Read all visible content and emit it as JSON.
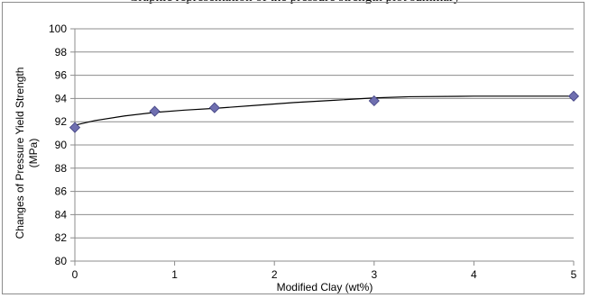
{
  "top_text_fragment": "Graphic representation of the pressure strength plot summary",
  "chart_data": {
    "type": "scatter",
    "title": "",
    "xlabel": "Modified Clay (wt%)",
    "ylabel_lines": [
      "Changes of Pressure Yield Strength",
      "(MPa)"
    ],
    "xlim": [
      0,
      5
    ],
    "ylim": [
      80,
      100
    ],
    "x_ticks": [
      0,
      1,
      2,
      3,
      4,
      5
    ],
    "y_ticks": [
      80,
      82,
      84,
      86,
      88,
      90,
      92,
      94,
      96,
      98,
      100
    ],
    "grid": "horizontal",
    "legend": "none",
    "marker": "diamond",
    "marker_color": "#6f6fb0",
    "trendline": "logarithmic",
    "series": [
      {
        "x": [
          0,
          0.8,
          1.4,
          3,
          5
        ],
        "y": [
          91.5,
          92.9,
          93.2,
          93.8,
          94.2
        ]
      }
    ],
    "trend_points": [
      [
        0,
        91.7
      ],
      [
        0.2,
        92.1
      ],
      [
        0.5,
        92.5
      ],
      [
        0.8,
        92.8
      ],
      [
        1.1,
        93.0
      ],
      [
        1.4,
        93.15
      ],
      [
        1.8,
        93.4
      ],
      [
        2.2,
        93.65
      ],
      [
        2.6,
        93.85
      ],
      [
        3.0,
        94.05
      ],
      [
        3.35,
        94.15
      ],
      [
        4.0,
        94.2
      ],
      [
        5.0,
        94.2
      ]
    ]
  }
}
